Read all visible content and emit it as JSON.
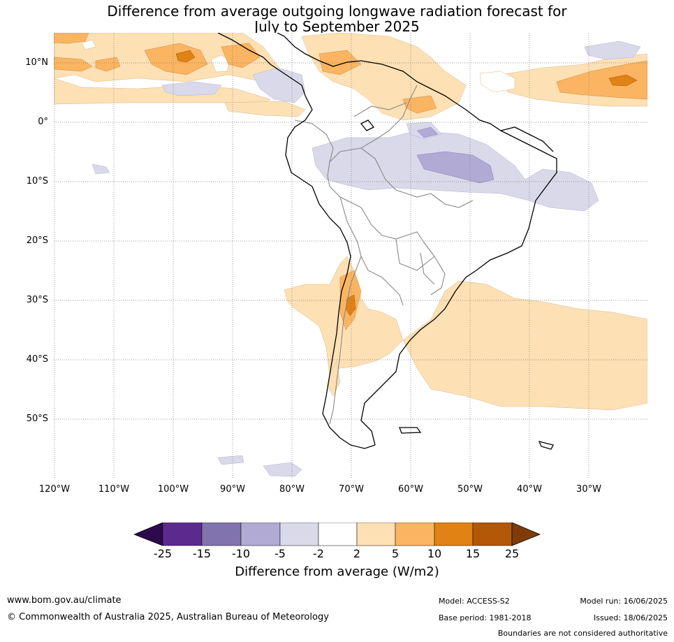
{
  "title": {
    "line1": "Difference from average outgoing longwave radiation forecast for",
    "line2": "July to September 2025"
  },
  "map": {
    "lat_labels": [
      "10°N",
      "0°",
      "10°S",
      "20°S",
      "30°S",
      "40°S",
      "50°S"
    ],
    "lon_labels": [
      "120°W",
      "110°W",
      "100°W",
      "90°W",
      "80°W",
      "70°W",
      "60°W",
      "50°W",
      "40°W",
      "30°W"
    ],
    "colors": {
      "p25": "#2d0a4e",
      "p15": "#5c2a8f",
      "p10": "#8173ad",
      "p5": "#b1aad4",
      "p2": "#d9d9ea",
      "neutral": "#ffffff",
      "o2": "#fde0b4",
      "o5": "#fbb562",
      "o10": "#e08214",
      "o15": "#b35807",
      "o25": "#7f3b08"
    }
  },
  "colorbar": {
    "ticks": [
      "-25",
      "-15",
      "-10",
      "-5",
      "-2",
      "2",
      "5",
      "10",
      "15",
      "25"
    ],
    "label": "Difference from average (W/m2)"
  },
  "footer": {
    "website": "www.bom.gov.au/climate",
    "copyright": "© Commonwealth of Australia 2025, Australian Bureau of Meteorology",
    "model": "Model: ACCESS-S2",
    "base_period": "Base period: 1981-2018",
    "model_run": "Model run: 16/06/2025",
    "issued": "Issued: 18/06/2025",
    "boundaries_note": "Boundaries are not considered authoritative"
  }
}
